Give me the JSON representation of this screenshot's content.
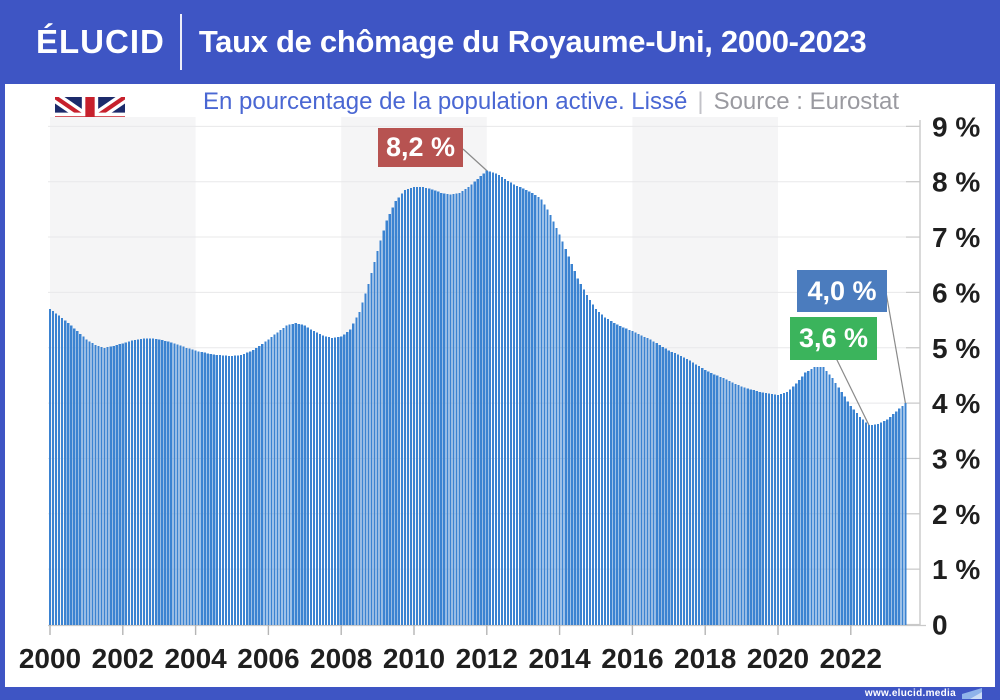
{
  "header": {
    "logo": "ÉLUCID",
    "title": "Taux de chômage du Royaume-Uni, 2000-2023"
  },
  "subtitle": {
    "text": "En pourcentage de la population active. Lissé",
    "separator": "|",
    "source": "Source : Eurostat"
  },
  "footer": {
    "site": "www.elucid.media"
  },
  "colors": {
    "frame_blue": "#3e55c4",
    "bar_blue": "#3b83d1",
    "band_gray": "#f5f5f6",
    "grid": "#e8e8ea",
    "axis": "#c9c9c9",
    "tick": "#b5b5b5",
    "label_dark": "#1f1f1f",
    "subtitle_blue": "#4a67d3",
    "source_gray": "#9a9aa0",
    "annot_red": "#b75351",
    "annot_blue": "#4b7cbe",
    "annot_green": "#3bb45c",
    "connector_gray": "#8a8a8a"
  },
  "chart_data": {
    "type": "area",
    "title": "Taux de chômage du Royaume-Uni, 2000-2023",
    "subtitle": "En pourcentage de la population active. Lissé",
    "source": "Source : Eurostat",
    "unit": "%",
    "x_start": 2000.0,
    "x_end": 2023.5,
    "x_step_years": 0.25,
    "values": [
      5.7,
      5.58,
      5.45,
      5.3,
      5.15,
      5.05,
      5.0,
      5.03,
      5.08,
      5.13,
      5.16,
      5.17,
      5.15,
      5.11,
      5.06,
      5.0,
      4.95,
      4.91,
      4.88,
      4.86,
      4.85,
      4.87,
      4.93,
      5.03,
      5.15,
      5.28,
      5.4,
      5.45,
      5.4,
      5.3,
      5.22,
      5.18,
      5.2,
      5.33,
      5.65,
      6.15,
      6.75,
      7.3,
      7.65,
      7.85,
      7.9,
      7.9,
      7.86,
      7.8,
      7.77,
      7.8,
      7.9,
      8.05,
      8.2,
      8.15,
      8.05,
      7.95,
      7.88,
      7.8,
      7.68,
      7.4,
      7.05,
      6.65,
      6.25,
      5.95,
      5.7,
      5.55,
      5.45,
      5.37,
      5.3,
      5.22,
      5.15,
      5.05,
      4.95,
      4.88,
      4.8,
      4.7,
      4.6,
      4.52,
      4.45,
      4.37,
      4.3,
      4.25,
      4.2,
      4.17,
      4.15,
      4.2,
      4.35,
      4.55,
      4.65,
      4.65,
      4.45,
      4.2,
      3.95,
      3.75,
      3.6,
      3.62,
      3.7,
      3.85,
      4.0
    ],
    "ylim": [
      0,
      9
    ],
    "y_ticks": [
      "0",
      "1 %",
      "2 %",
      "3 %",
      "4 %",
      "5 %",
      "6 %",
      "7 %",
      "8 %",
      "9 %"
    ],
    "x_ticks": [
      "2000",
      "2002",
      "2004",
      "2006",
      "2008",
      "2010",
      "2012",
      "2014",
      "2016",
      "2018",
      "2020",
      "2022"
    ],
    "grid": true,
    "legend": false,
    "annotations": [
      {
        "label": "8,2 %",
        "value": 8.2,
        "year": 2012.0,
        "color": "#b75351"
      },
      {
        "label": "4,0 %",
        "value": 4.0,
        "year": 2023.5,
        "color": "#4b7cbe"
      },
      {
        "label": "3,6 %",
        "value": 3.6,
        "year": 2022.5,
        "color": "#3bb45c"
      }
    ]
  }
}
